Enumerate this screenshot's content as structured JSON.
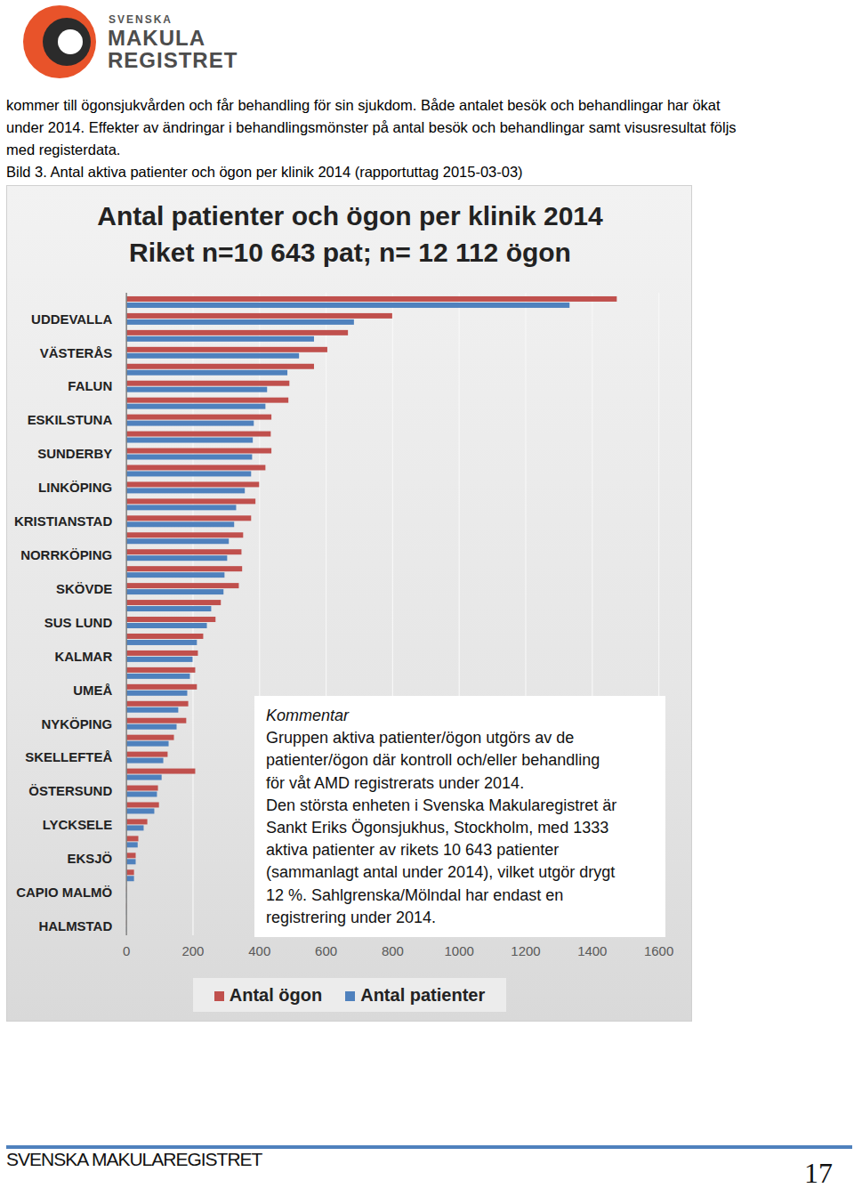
{
  "header": {
    "logo": [
      "SVENSKA",
      "MAKULA",
      "REGISTRET"
    ]
  },
  "body": {
    "lines": [
      "kommer till ögonsjukvården och får behandling för sin sjukdom. Både antalet besök och behandlingar har ökat",
      "under 2014. Effekter av ändringar i behandlingsmönster på antal besök och behandlingar samt visusresultat följs",
      "med registerdata."
    ]
  },
  "caption": "Bild 3. Antal aktiva patienter och ögon per klinik 2014 (rapportuttag 2015-03-03)",
  "chart_data": {
    "type": "bar",
    "orientation": "horizontal",
    "title": "Antal patienter och ögon per klinik 2014",
    "subtitle": "Riket n=10 643 pat; n= 12 112 ögon",
    "categories": [
      null,
      "UDDEVALLA",
      null,
      "VÄSTERÅS",
      null,
      "FALUN",
      null,
      "ESKILSTUNA",
      null,
      "SUNDERBY",
      null,
      "LINKÖPING",
      null,
      "KRISTIANSTAD",
      null,
      "NORRKÖPING",
      null,
      "SKÖVDE",
      null,
      "SUS LUND",
      null,
      "KALMAR",
      null,
      "UMEÅ",
      null,
      "NYKÖPING",
      null,
      "SKELLEFTEÅ",
      null,
      "ÖSTERSUND",
      null,
      "LYCKSELE",
      null,
      "EKSJÖ",
      null,
      "CAPIO MALMÖ",
      null,
      "HALMSTAD"
    ],
    "series": [
      {
        "name": "Antal ögon",
        "color": "#c0504d",
        "values": [
          1475,
          800,
          667,
          605,
          565,
          491,
          488,
          437,
          435,
          437,
          419,
          400,
          389,
          376,
          352,
          347,
          349,
          339,
          285,
          269,
          232,
          216,
          208,
          213,
          187,
          181,
          144,
          125,
          208,
          96,
          99,
          64,
          37,
          29,
          24,
          1,
          1,
          1
        ]
      },
      {
        "name": "Antal patienter",
        "color": "#4f81bd",
        "values": [
          1333,
          685,
          565,
          520,
          485,
          424,
          419,
          384,
          381,
          379,
          376,
          357,
          331,
          325,
          309,
          304,
          296,
          293,
          256,
          243,
          213,
          200,
          192,
          184,
          157,
          152,
          128,
          112,
          107,
          93,
          85,
          53,
          35,
          29,
          24,
          1,
          1,
          1
        ]
      }
    ],
    "xlim": [
      0,
      1600
    ],
    "xticks": [
      0,
      200,
      400,
      600,
      800,
      1000,
      1200,
      1400,
      1600
    ],
    "grid": true,
    "legend": "bottom"
  },
  "comment": {
    "title": "Kommentar",
    "lines": [
      "Gruppen aktiva patienter/ögon utgörs av de",
      "patienter/ögon där kontroll och/eller behandling",
      "för våt AMD registrerats under 2014.",
      "Den största enheten i Svenska Makularegistret är",
      "Sankt Eriks Ögonsjukhus, Stockholm, med 1333",
      "aktiva patienter av rikets 10 643 patienter",
      "(sammanlagt antal under 2014), vilket utgör drygt",
      "12 %. Sahlgrenska/Mölndal har endast en",
      "registrering under 2014."
    ]
  },
  "footer": {
    "text": "SVENSKA MAKULAREGISTRET",
    "page": 17
  }
}
